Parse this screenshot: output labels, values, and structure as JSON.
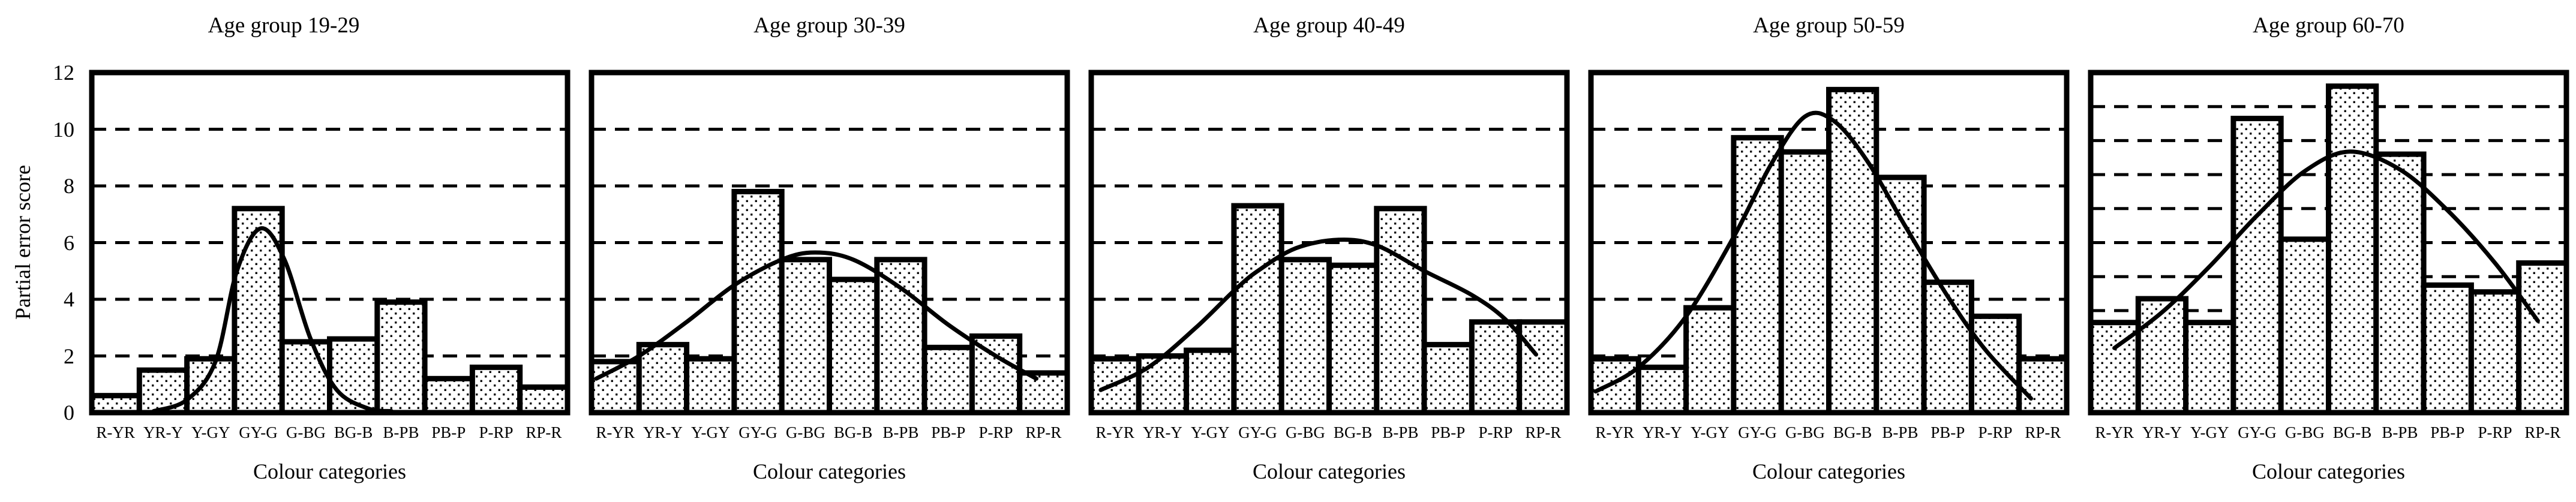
{
  "figure": {
    "ylabel": "Partial error score",
    "xlabel": "Colour categories",
    "y_ticks": [
      12,
      10,
      8,
      6,
      4,
      2,
      0
    ],
    "categories": [
      "R-YR",
      "YR-Y",
      "Y-GY",
      "GY-G",
      "G-BG",
      "BG-B",
      "B-PB",
      "PB-P",
      "P-RP",
      "RP-R"
    ],
    "ink_color": "#000000",
    "background_color": "#ffffff"
  },
  "chart_data": [
    {
      "type": "bar",
      "title": "Age group 19-29",
      "categories": [
        "R-YR",
        "YR-Y",
        "Y-GY",
        "GY-G",
        "G-BG",
        "BG-B",
        "B-PB",
        "PB-P",
        "P-RP",
        "RP-R"
      ],
      "values": [
        0.6,
        1.5,
        1.9,
        7.2,
        2.5,
        2.6,
        3.9,
        1.2,
        1.6,
        0.9
      ],
      "xlabel": "Colour categories",
      "ylabel": "Partial error score",
      "ylim": [
        0,
        12
      ],
      "grid_step": 2,
      "grid": "dashed-horizontal",
      "bar_fill": "dotted-pattern",
      "curve": "normal-fit",
      "curve_points": [
        [
          1.3,
          0.05
        ],
        [
          2.0,
          0.45
        ],
        [
          2.6,
          1.8
        ],
        [
          3.05,
          5.0
        ],
        [
          3.55,
          6.5
        ],
        [
          4.05,
          5.4
        ],
        [
          4.6,
          2.6
        ],
        [
          5.15,
          0.8
        ],
        [
          5.8,
          0.15
        ],
        [
          6.3,
          0.05
        ]
      ]
    },
    {
      "type": "bar",
      "title": "Age group 30-39",
      "categories": [
        "R-YR",
        "YR-Y",
        "Y-GY",
        "GY-G",
        "G-BG",
        "BG-B",
        "B-PB",
        "PB-P",
        "P-RP",
        "RP-R"
      ],
      "values": [
        1.8,
        2.4,
        1.9,
        7.8,
        5.4,
        4.7,
        5.4,
        2.3,
        2.7,
        1.4
      ],
      "xlabel": "Colour categories",
      "ylabel": "",
      "ylim": [
        0,
        12
      ],
      "grid_step": 2,
      "grid": "dashed-horizontal",
      "bar_fill": "dotted-pattern",
      "curve": "normal-fit",
      "curve_points": [
        [
          0.1,
          1.2
        ],
        [
          1.0,
          2.0
        ],
        [
          2.0,
          3.2
        ],
        [
          3.0,
          4.5
        ],
        [
          4.0,
          5.4
        ],
        [
          4.7,
          5.65
        ],
        [
          5.5,
          5.4
        ],
        [
          6.5,
          4.4
        ],
        [
          7.5,
          3.1
        ],
        [
          8.5,
          2.0
        ],
        [
          9.35,
          1.2
        ]
      ]
    },
    {
      "type": "bar",
      "title": "Age group 40-49",
      "categories": [
        "R-YR",
        "YR-Y",
        "Y-GY",
        "GY-G",
        "G-BG",
        "BG-B",
        "B-PB",
        "PB-P",
        "P-RP",
        "RP-R"
      ],
      "values": [
        1.9,
        2.0,
        2.2,
        7.3,
        5.4,
        5.2,
        7.2,
        2.4,
        3.2,
        3.2
      ],
      "xlabel": "Colour categories",
      "ylabel": "",
      "ylim": [
        0,
        12
      ],
      "grid_step": 2,
      "grid": "dashed-horizontal",
      "bar_fill": "dotted-pattern",
      "curve": "normal-fit",
      "curve_points": [
        [
          0.2,
          0.8
        ],
        [
          1.2,
          1.6
        ],
        [
          2.2,
          3.0
        ],
        [
          3.0,
          4.3
        ],
        [
          3.5,
          5.0
        ],
        [
          4.3,
          5.8
        ],
        [
          5.2,
          6.1
        ],
        [
          6.0,
          5.9
        ],
        [
          7.0,
          5.0
        ],
        [
          8.0,
          4.15
        ],
        [
          8.7,
          3.3
        ],
        [
          9.35,
          2.05
        ]
      ]
    },
    {
      "type": "bar",
      "title": "Age group 50-59",
      "categories": [
        "R-YR",
        "YR-Y",
        "Y-GY",
        "GY-G",
        "G-BG",
        "BG-B",
        "B-PB",
        "PB-P",
        "P-RP",
        "RP-R"
      ],
      "values": [
        1.9,
        1.6,
        3.7,
        9.7,
        9.2,
        11.4,
        8.3,
        4.6,
        3.4,
        1.9
      ],
      "xlabel": "Colour categories",
      "ylabel": "",
      "ylim": [
        0,
        12
      ],
      "grid_step": 2,
      "grid": "dashed-horizontal",
      "bar_fill": "dotted-pattern",
      "curve": "normal-fit",
      "curve_points": [
        [
          0.1,
          0.75
        ],
        [
          1.0,
          1.6
        ],
        [
          2.0,
          3.4
        ],
        [
          3.0,
          6.2
        ],
        [
          3.8,
          8.8
        ],
        [
          4.5,
          10.45
        ],
        [
          5.1,
          10.3
        ],
        [
          5.8,
          8.9
        ],
        [
          6.6,
          6.6
        ],
        [
          7.5,
          4.1
        ],
        [
          8.3,
          2.2
        ],
        [
          9.25,
          0.5
        ]
      ]
    },
    {
      "type": "bar",
      "title": "Age group 60-70",
      "categories": [
        "R-YR",
        "YR-Y",
        "Y-GY",
        "GY-G",
        "G-BG",
        "BG-B",
        "B-PB",
        "PB-P",
        "P-RP",
        "RP-R"
      ],
      "values": [
        5.3,
        6.7,
        5.3,
        17.3,
        10.2,
        19.2,
        15.2,
        7.5,
        7.1,
        8.8
      ],
      "xlabel": "Colour categories",
      "ylabel": "",
      "ylim": [
        0,
        20
      ],
      "grid_step": 2,
      "grid": "dashed-horizontal",
      "bar_fill": "dotted-pattern",
      "curve": "normal-fit",
      "curve_points": [
        [
          0.5,
          3.8
        ],
        [
          1.5,
          5.9
        ],
        [
          2.5,
          8.6
        ],
        [
          3.5,
          11.6
        ],
        [
          4.5,
          14.2
        ],
        [
          5.45,
          15.35
        ],
        [
          6.5,
          14.3
        ],
        [
          7.5,
          11.9
        ],
        [
          8.5,
          8.8
        ],
        [
          9.4,
          5.4
        ]
      ]
    }
  ]
}
